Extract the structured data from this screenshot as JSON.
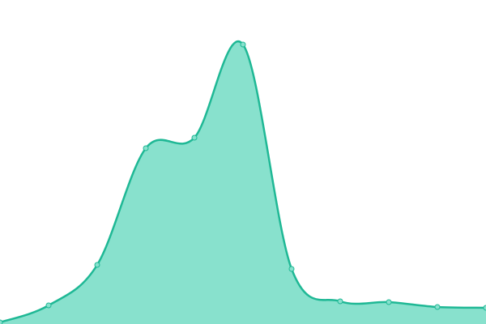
{
  "chart_data": {
    "type": "area",
    "categories": [
      null,
      null,
      null,
      null,
      null,
      null,
      null,
      null,
      null,
      null,
      null
    ],
    "values": [
      2,
      23,
      73,
      217,
      230,
      345,
      68,
      28,
      27,
      21,
      20
    ],
    "color": "#1fb895",
    "fill_color": "#88e1cd",
    "ylim": [
      0,
      400
    ],
    "grid": false,
    "markers": true
  }
}
